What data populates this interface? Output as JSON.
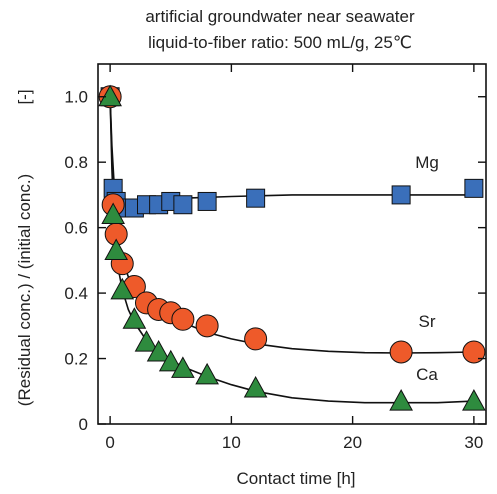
{
  "chart_data": {
    "type": "scatter",
    "title_lines": [
      "artificial groundwater near seawater",
      "liquid-to-fiber ratio: 500 mL/g, 25℃"
    ],
    "xlabel": "Contact time [h]",
    "ylabel": "(Residual conc.) / (initial conc.)",
    "ylabel_unit": "[-]",
    "xlim": [
      -1,
      31
    ],
    "ylim": [
      0,
      1.1
    ],
    "xticks": [
      0,
      10,
      20,
      30
    ],
    "xtick_labels": [
      "0",
      "10",
      "20",
      "30"
    ],
    "yticks": [
      0,
      0.2,
      0.4,
      0.6,
      0.8,
      1.0
    ],
    "ytick_labels": [
      "0",
      "0.2",
      "0.4",
      "0.6",
      "0.8",
      "1.0"
    ],
    "grid": false,
    "series": [
      {
        "name": "Mg",
        "marker": "square",
        "color": "#3a6fba",
        "x": [
          0,
          0.25,
          0.5,
          1,
          2,
          3,
          4,
          5,
          6,
          8,
          12,
          24,
          30
        ],
        "y": [
          1.0,
          0.72,
          0.68,
          0.66,
          0.66,
          0.67,
          0.67,
          0.68,
          0.67,
          0.68,
          0.69,
          0.7,
          0.72
        ],
        "curve_x": [
          0,
          0.15,
          0.3,
          0.5,
          1,
          2,
          4,
          6,
          10,
          15,
          20,
          25,
          30
        ],
        "curve_y": [
          1.0,
          0.85,
          0.75,
          0.69,
          0.67,
          0.675,
          0.685,
          0.69,
          0.695,
          0.7,
          0.7,
          0.7,
          0.7
        ]
      },
      {
        "name": "Sr",
        "marker": "circle",
        "color": "#ee5a2a",
        "x": [
          0,
          0.25,
          0.5,
          1,
          2,
          3,
          4,
          5,
          6,
          8,
          12,
          24,
          30
        ],
        "y": [
          1.0,
          0.67,
          0.58,
          0.49,
          0.42,
          0.37,
          0.35,
          0.34,
          0.32,
          0.3,
          0.26,
          0.22,
          0.22
        ],
        "curve_x": [
          0,
          0.15,
          0.3,
          0.5,
          0.75,
          1,
          1.5,
          2,
          3,
          4,
          5,
          6,
          8,
          10,
          12,
          15,
          18,
          21,
          24,
          27,
          30
        ],
        "curve_y": [
          1.0,
          0.82,
          0.7,
          0.6,
          0.54,
          0.5,
          0.45,
          0.42,
          0.38,
          0.35,
          0.33,
          0.31,
          0.28,
          0.26,
          0.245,
          0.23,
          0.222,
          0.218,
          0.217,
          0.218,
          0.22
        ]
      },
      {
        "name": "Ca",
        "marker": "triangle",
        "color": "#2e8b3e",
        "x": [
          0,
          0.25,
          0.5,
          1,
          2,
          3,
          4,
          5,
          6,
          8,
          12,
          24,
          30
        ],
        "y": [
          1.0,
          0.64,
          0.53,
          0.41,
          0.32,
          0.25,
          0.22,
          0.19,
          0.17,
          0.15,
          0.11,
          0.07,
          0.07
        ],
        "curve_x": [
          0,
          0.15,
          0.3,
          0.5,
          0.75,
          1,
          1.5,
          2,
          3,
          4,
          5,
          6,
          8,
          10,
          12,
          15,
          18,
          21,
          24,
          27,
          30
        ],
        "curve_y": [
          1.0,
          0.78,
          0.62,
          0.52,
          0.46,
          0.41,
          0.35,
          0.31,
          0.255,
          0.22,
          0.195,
          0.175,
          0.145,
          0.12,
          0.1,
          0.08,
          0.07,
          0.065,
          0.065,
          0.065,
          0.07
        ]
      }
    ]
  }
}
